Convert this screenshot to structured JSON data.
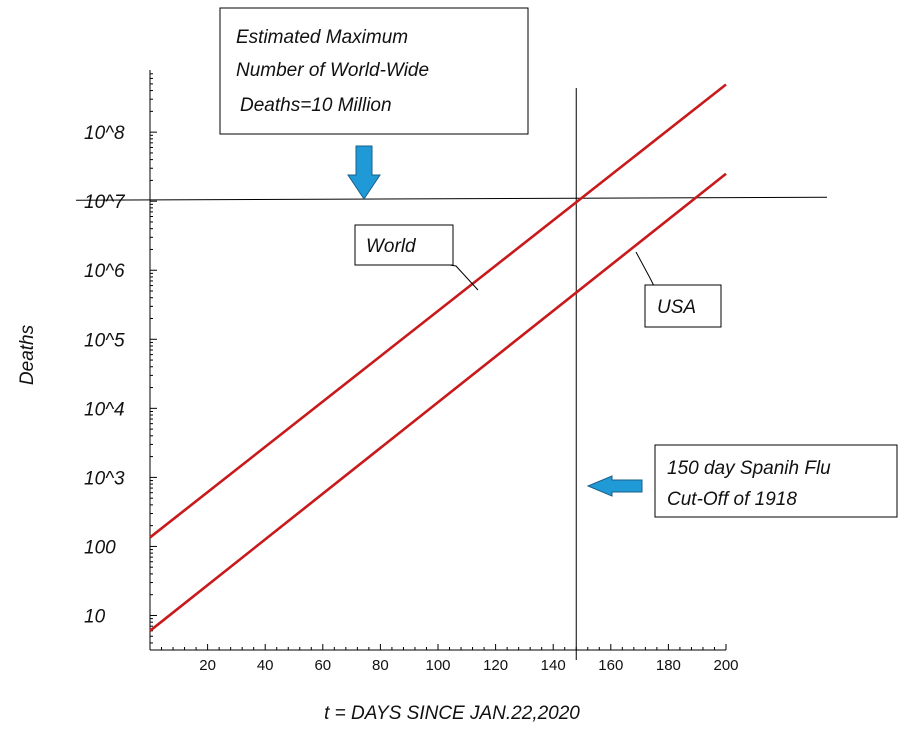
{
  "chart_data": {
    "type": "line",
    "title": "",
    "xlabel": "t = DAYS SINCE JAN.22,2020",
    "ylabel": "Deaths",
    "xlim": [
      0,
      200
    ],
    "ylim_log10": [
      0.5,
      8.9
    ],
    "y_scale": "log",
    "grid": false,
    "x_ticks": [
      "20",
      "40",
      "60",
      "80",
      "100",
      "120",
      "140",
      "160",
      "180",
      "200"
    ],
    "y_ticks": [
      {
        "label": "10",
        "value": 10
      },
      {
        "label": "100",
        "value": 100
      },
      {
        "label": "10^3",
        "value": 1000
      },
      {
        "label": "10^4",
        "value": 10000
      },
      {
        "label": "10^5",
        "value": 100000
      },
      {
        "label": "10^6",
        "value": 1000000
      },
      {
        "label": "10^7",
        "value": 10000000
      },
      {
        "label": "10^8",
        "value": 100000000
      }
    ],
    "series": [
      {
        "name": "World",
        "x": [
          0,
          200
        ],
        "y": [
          135,
          490000000
        ],
        "color": "#c8191b"
      },
      {
        "name": "USA",
        "x": [
          0,
          200
        ],
        "y": [
          6,
          25000000
        ],
        "color": "#c8191b"
      }
    ],
    "reference_lines": [
      {
        "orientation": "horizontal",
        "y": 10000000
      },
      {
        "orientation": "vertical",
        "x": 148
      }
    ],
    "annotations": {
      "max_box": [
        "Estimated Maximum",
        "Number of World-Wide",
        "Deaths=10 Million"
      ],
      "world_label": "World",
      "usa_label": "USA",
      "flu_box": [
        "150 day Spanih Flu",
        "Cut-Off of 1918"
      ]
    },
    "arrow_color": "#1f9ad6"
  }
}
